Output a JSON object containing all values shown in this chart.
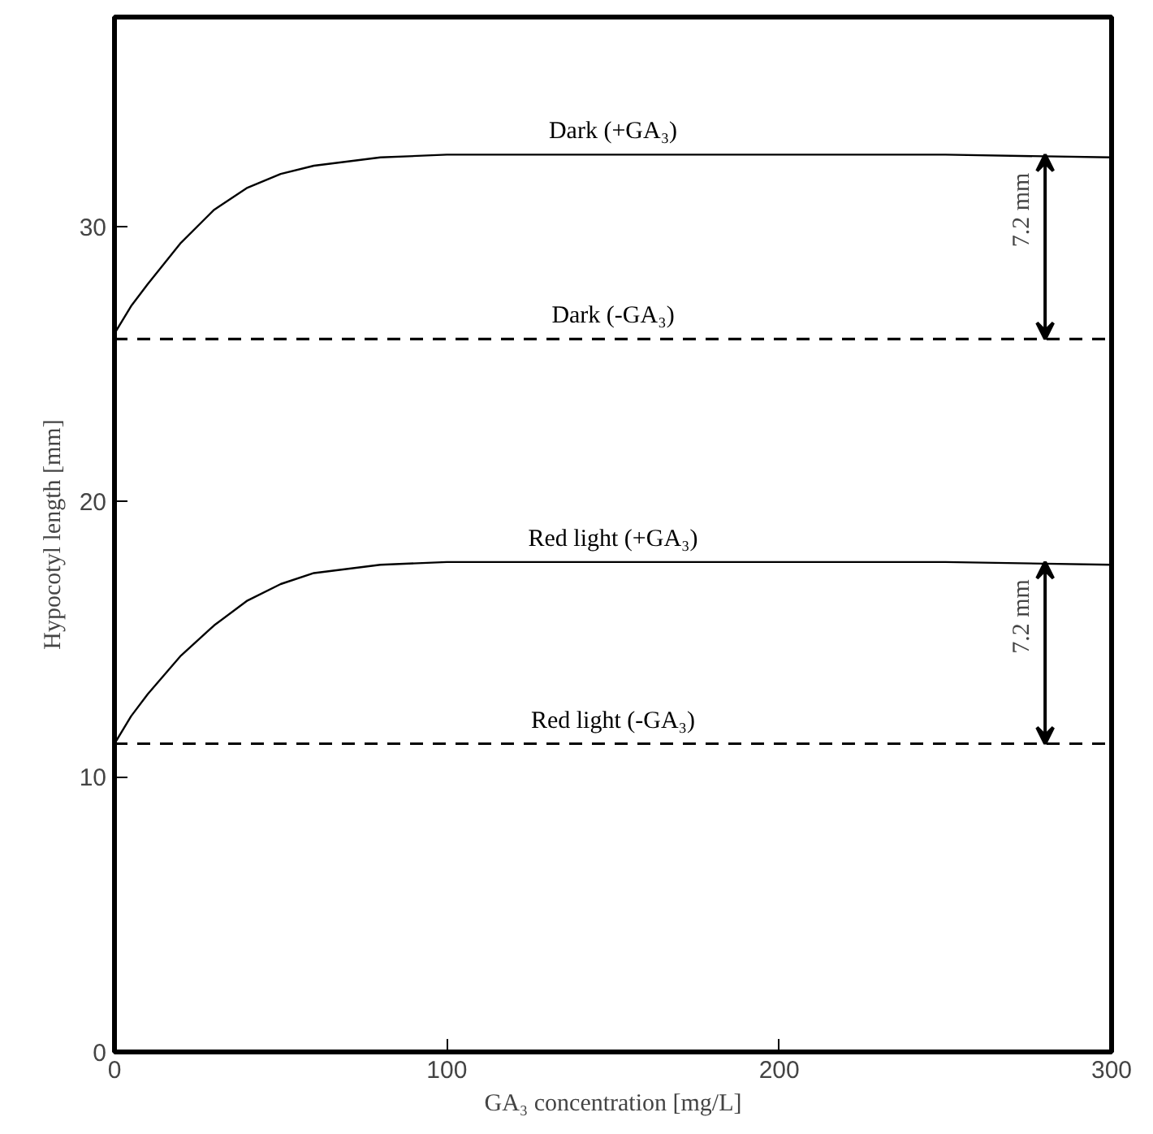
{
  "chart_data": {
    "type": "line",
    "xlabel": "GA₃ concentration [mg/L]",
    "ylabel": "Hypocotyl length [mm]",
    "xlim": [
      0,
      300
    ],
    "ylim": [
      0,
      37.6
    ],
    "xticks": [
      0,
      100,
      200,
      300
    ],
    "yticks": [
      0,
      10,
      20,
      30
    ],
    "grid": false,
    "marker": "none",
    "series": [
      {
        "name": "Dark (+GA₃)",
        "color": "#000000",
        "line_style": "solid",
        "x": [
          0,
          5,
          10,
          20,
          30,
          40,
          50,
          60,
          80,
          100,
          150,
          200,
          250,
          300
        ],
        "values": [
          26.1,
          27.1,
          27.9,
          29.4,
          30.6,
          31.4,
          31.9,
          32.2,
          32.5,
          32.6,
          32.6,
          32.6,
          32.6,
          32.5
        ]
      },
      {
        "name": "Dark (-GA₃)",
        "color": "#000000",
        "line_style": "dashed",
        "x": [
          0,
          300
        ],
        "values": [
          25.9,
          25.9
        ]
      },
      {
        "name": "Red light (+GA₃)",
        "color": "#000000",
        "line_style": "solid",
        "x": [
          0,
          5,
          10,
          20,
          30,
          40,
          50,
          60,
          80,
          100,
          150,
          200,
          250,
          300
        ],
        "values": [
          11.2,
          12.2,
          13.0,
          14.4,
          15.5,
          16.4,
          17.0,
          17.4,
          17.7,
          17.8,
          17.8,
          17.8,
          17.8,
          17.7
        ]
      },
      {
        "name": "Red light (-GA₃)",
        "color": "#000000",
        "line_style": "dashed",
        "x": [
          0,
          300
        ],
        "values": [
          11.2,
          11.2
        ]
      }
    ],
    "annotations": [
      {
        "text": "7.2 mm",
        "x": 280,
        "y": 32.6
      },
      {
        "text": "7.2 mm",
        "x": 280,
        "y": 17.8
      }
    ]
  }
}
